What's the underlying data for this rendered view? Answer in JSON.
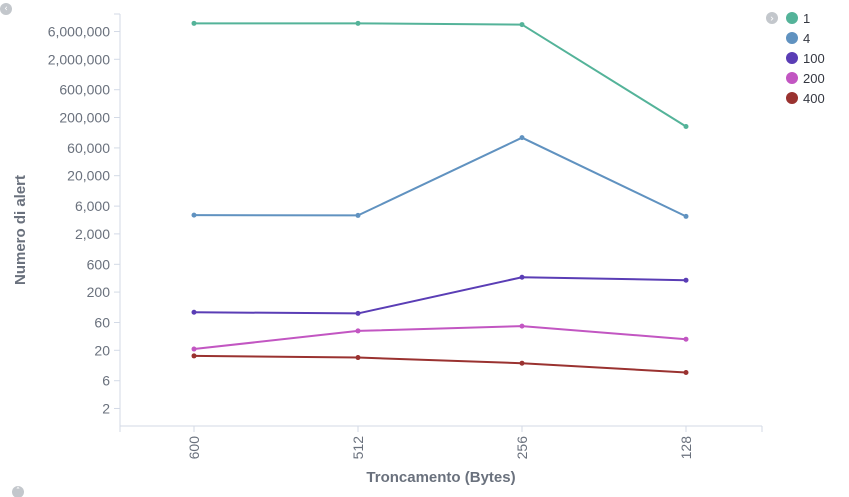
{
  "controls": {
    "left_toggle_icon": "chevron-left-icon",
    "legend_toggle_icon": "chevron-right-icon",
    "bottom_toggle_icon": "chevron-up-icon"
  },
  "chart_data": {
    "type": "line",
    "title": "",
    "xlabel": "Troncamento (Bytes)",
    "ylabel": "Numero di alert",
    "yscale": "log",
    "ylim": [
      1,
      12000000
    ],
    "grid": false,
    "legend_position": "top-right",
    "categories": [
      "600",
      "512",
      "256",
      "128"
    ],
    "y_ticks": [
      {
        "value": 2,
        "label": "2"
      },
      {
        "value": 6,
        "label": "6"
      },
      {
        "value": 20,
        "label": "20"
      },
      {
        "value": 60,
        "label": "60"
      },
      {
        "value": 200,
        "label": "200"
      },
      {
        "value": 600,
        "label": "600"
      },
      {
        "value": 2000,
        "label": "2,000"
      },
      {
        "value": 6000,
        "label": "6,000"
      },
      {
        "value": 20000,
        "label": "20,000"
      },
      {
        "value": 60000,
        "label": "60,000"
      },
      {
        "value": 200000,
        "label": "200,000"
      },
      {
        "value": 600000,
        "label": "600,000"
      },
      {
        "value": 2000000,
        "label": "2,000,000"
      },
      {
        "value": 6000000,
        "label": "6,000,000"
      }
    ],
    "series": [
      {
        "name": "1",
        "color": "#54b399",
        "values": [
          8300000,
          8300000,
          7900000,
          140000
        ]
      },
      {
        "name": "4",
        "color": "#6092c0",
        "values": [
          4200,
          4150,
          90000,
          4000
        ]
      },
      {
        "name": "100",
        "color": "#5a3db5",
        "values": [
          90,
          86,
          360,
          320
        ]
      },
      {
        "name": "200",
        "color": "#c256c2",
        "values": [
          21,
          43,
          52,
          31
        ]
      },
      {
        "name": "400",
        "color": "#9a3230",
        "values": [
          16,
          15,
          12,
          8.3
        ]
      }
    ]
  }
}
